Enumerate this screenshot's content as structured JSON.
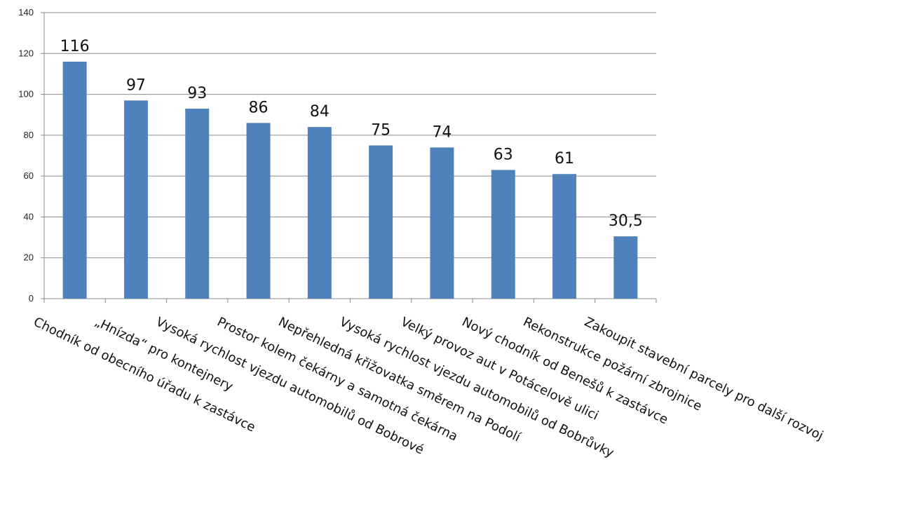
{
  "chart_data": {
    "type": "bar",
    "categories": [
      "Chodník od obecního úřadu k zastávce",
      "„Hnízda“ pro kontejnery",
      "Vysoká rychlost vjezdu automobilů od Bobrové",
      "Prostor kolem čekárny a samotná čekárna",
      "Nepřehledná křižovatka směrem na Podolí",
      "Vysoká rychlost vjezdu automobilů od Bobrůvky",
      "Velký provoz aut v Potácelově ulici",
      "Nový chodník od Benešů k zastávce",
      "Rekonstrukce požární zbrojnice",
      "Zakoupit stavební parcely pro další rozvoj"
    ],
    "values": [
      116,
      97,
      93,
      86,
      84,
      75,
      74,
      63,
      61,
      30.5
    ],
    "value_labels": [
      "116",
      "97",
      "93",
      "86",
      "84",
      "75",
      "74",
      "63",
      "61",
      "30,5"
    ],
    "ylim": [
      0,
      140
    ],
    "yticks": [
      0,
      20,
      40,
      60,
      80,
      100,
      120,
      140
    ],
    "ytick_labels": [
      "0",
      "20",
      "40",
      "60",
      "80",
      "100",
      "120",
      "140"
    ],
    "grid": true,
    "legend": "none",
    "title": "",
    "xlabel": "",
    "ylabel": "",
    "colors": {
      "bar": "#4f81bd",
      "grid": "#8c8c8c",
      "axis": "#8c8c8c"
    }
  }
}
